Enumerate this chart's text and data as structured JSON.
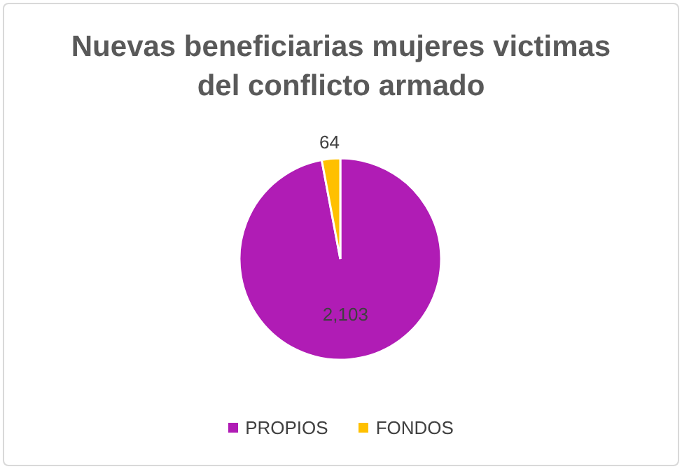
{
  "chart_data": {
    "type": "pie",
    "title": "Nuevas beneficiarias mujeres victimas del conflicto armado",
    "categories": [
      "PROPIOS",
      "FONDOS"
    ],
    "values": [
      2103,
      64
    ],
    "colors": [
      "#b01cb5",
      "#ffc000"
    ],
    "value_labels": [
      "2,103",
      "64"
    ],
    "legend": "bottom"
  }
}
